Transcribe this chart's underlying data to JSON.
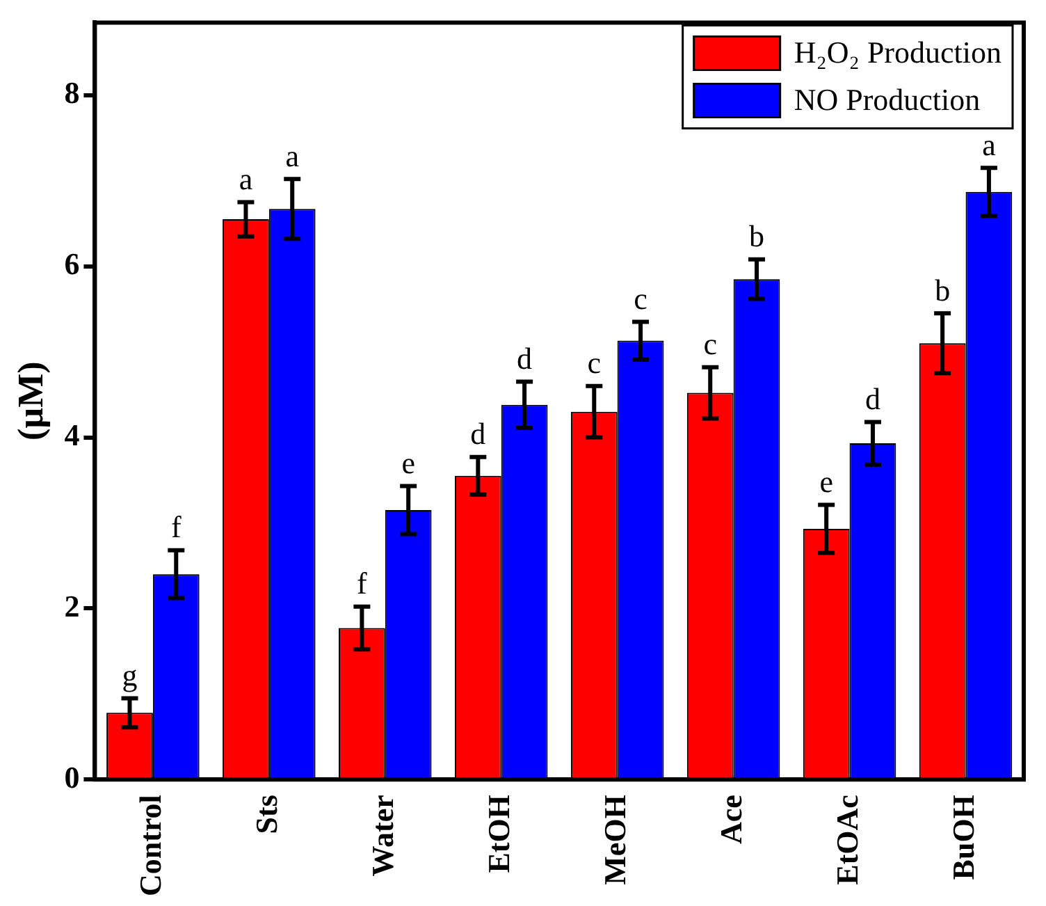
{
  "chart_data": {
    "type": "bar",
    "ylabel": "(µM)",
    "categories": [
      "Control",
      "Sts",
      "Water",
      "EtOH",
      "MeOH",
      "Ace",
      "EtOAc",
      "BuOH"
    ],
    "series": [
      {
        "name": "H₂O₂ Production",
        "color": "#ff0000",
        "values": [
          0.78,
          6.55,
          1.77,
          3.55,
          4.3,
          4.52,
          2.93,
          5.1
        ],
        "errors": [
          0.17,
          0.2,
          0.25,
          0.22,
          0.3,
          0.3,
          0.28,
          0.35
        ]
      },
      {
        "name": "NO Production",
        "color": "#0000ff",
        "values": [
          2.4,
          6.67,
          3.15,
          4.38,
          5.13,
          5.85,
          3.93,
          6.87
        ],
        "errors": [
          0.28,
          0.35,
          0.28,
          0.27,
          0.22,
          0.23,
          0.25,
          0.28
        ]
      }
    ],
    "annotations": [
      {
        "text": "g",
        "x": "Control",
        "y": 0.78
      },
      {
        "text": "f",
        "x": "Control",
        "y": 2.4
      },
      {
        "text": "a",
        "x": "Sts",
        "y": 6.55
      },
      {
        "text": "a",
        "x": "Sts",
        "y": 6.67
      },
      {
        "text": "f",
        "x": "Water",
        "y": 1.77
      },
      {
        "text": "e",
        "x": "Water",
        "y": 3.15
      },
      {
        "text": "d",
        "x": "EtOH",
        "y": 3.55
      },
      {
        "text": "d",
        "x": "EtOH",
        "y": 4.38
      },
      {
        "text": "c",
        "x": "MeOH",
        "y": 4.3
      },
      {
        "text": "c",
        "x": "MeOH",
        "y": 5.13
      },
      {
        "text": "c",
        "x": "Ace",
        "y": 4.52
      },
      {
        "text": "b",
        "x": "Ace",
        "y": 5.85
      },
      {
        "text": "e",
        "x": "EtOAc",
        "y": 2.93
      },
      {
        "text": "d",
        "x": "EtOAc",
        "y": 3.93
      },
      {
        "text": "b",
        "x": "BuOH",
        "y": 5.1
      },
      {
        "text": "a",
        "x": "BuOH",
        "y": 6.87
      }
    ],
    "ylim": [
      0,
      8.85
    ],
    "yticks": [
      0,
      2,
      4,
      6,
      8
    ],
    "grid": false,
    "legend": "top right"
  }
}
